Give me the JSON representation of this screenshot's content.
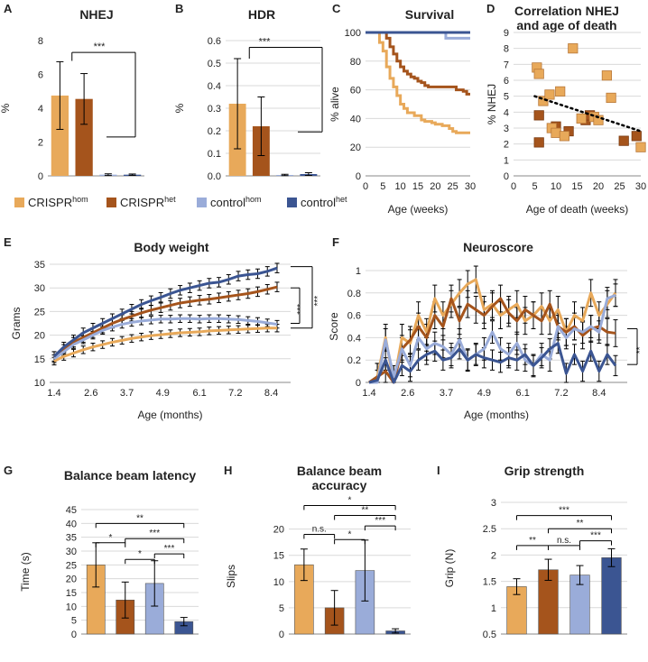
{
  "colors": {
    "crispr_hom": "#E8A95A",
    "crispr_het": "#A5541C",
    "control_hom": "#9AACD9",
    "control_het": "#3B5592",
    "grid": "#d9d9d9",
    "axis": "#888888",
    "text": "#222222",
    "trend": "#000000"
  },
  "legend": [
    {
      "base": "CRISPR",
      "sup": "hom",
      "color_key": "crispr_hom"
    },
    {
      "base": "CRISPR",
      "sup": "het",
      "color_key": "crispr_het"
    },
    {
      "base": "control",
      "sup": "hom",
      "color_key": "control_hom"
    },
    {
      "base": "control",
      "sup": "het",
      "color_key": "control_het"
    }
  ],
  "chart_data": [
    {
      "id": "A",
      "type": "bar",
      "title": "NHEJ",
      "panel_label": "A",
      "ylabel": "%",
      "xlabel": "",
      "ylim": [
        0,
        8
      ],
      "yticks": [
        "0",
        "2",
        "4",
        "6",
        "8"
      ],
      "series": [
        {
          "name": "CRISPRhom",
          "value": 4.75,
          "err": 2.0
        },
        {
          "name": "CRISPRhet",
          "value": 4.55,
          "err": 1.5
        },
        {
          "name": "controlhom",
          "value": 0.07,
          "err": 0.05
        },
        {
          "name": "controlhet",
          "value": 0.07,
          "err": 0.04
        }
      ],
      "significance": [
        {
          "label": "***",
          "from": [
            0,
            1
          ],
          "to": [
            2,
            3
          ]
        }
      ]
    },
    {
      "id": "B",
      "type": "bar",
      "title": "HDR",
      "panel_label": "B",
      "ylabel": "%",
      "xlabel": "",
      "ylim": [
        0,
        0.6
      ],
      "yticks": [
        "0.0",
        "0.1",
        "0.2",
        "0.3",
        "0.4",
        "0.5",
        "0.6"
      ],
      "series": [
        {
          "name": "CRISPRhom",
          "value": 0.32,
          "err": 0.2
        },
        {
          "name": "CRISPRhet",
          "value": 0.22,
          "err": 0.13
        },
        {
          "name": "controlhom",
          "value": 0.004,
          "err": 0.003
        },
        {
          "name": "controlhet",
          "value": 0.008,
          "err": 0.006
        }
      ],
      "significance": [
        {
          "label": "***",
          "from": [
            0,
            1
          ],
          "to": [
            2,
            3
          ]
        }
      ]
    },
    {
      "id": "C",
      "type": "line",
      "title": "Survival",
      "panel_label": "C",
      "ylabel": "% alive",
      "xlabel": "Age (weeks)",
      "xlim": [
        0,
        30
      ],
      "ylim": [
        0,
        100
      ],
      "xticks": [
        "0",
        "5",
        "10",
        "15",
        "20",
        "25",
        "30"
      ],
      "yticks": [
        "0",
        "20",
        "40",
        "60",
        "80",
        "100"
      ],
      "series": [
        {
          "name": "CRISPRhom",
          "steps": [
            [
              0,
              100
            ],
            [
              4,
              100
            ],
            [
              4,
              93
            ],
            [
              5,
              87
            ],
            [
              6,
              76
            ],
            [
              7,
              68
            ],
            [
              8,
              62
            ],
            [
              9,
              56
            ],
            [
              10,
              50
            ],
            [
              11,
              47
            ],
            [
              12,
              44
            ],
            [
              14,
              42
            ],
            [
              16,
              39
            ],
            [
              17,
              38
            ],
            [
              19,
              37
            ],
            [
              20,
              36
            ],
            [
              22,
              35
            ],
            [
              23,
              35
            ],
            [
              24,
              33
            ],
            [
              25,
              31
            ],
            [
              26,
              30
            ],
            [
              30,
              30
            ]
          ]
        },
        {
          "name": "CRISPRhet",
          "steps": [
            [
              0,
              100
            ],
            [
              5,
              100
            ],
            [
              6,
              96
            ],
            [
              7,
              90
            ],
            [
              8,
              85
            ],
            [
              9,
              80
            ],
            [
              10,
              76
            ],
            [
              11,
              73
            ],
            [
              12,
              71
            ],
            [
              13,
              69
            ],
            [
              14,
              68
            ],
            [
              15,
              66
            ],
            [
              16,
              65
            ],
            [
              17,
              63
            ],
            [
              18,
              62
            ],
            [
              25,
              62
            ],
            [
              26,
              60
            ],
            [
              28,
              59
            ],
            [
              29,
              57
            ],
            [
              30,
              57
            ]
          ]
        },
        {
          "name": "controlhom",
          "steps": [
            [
              0,
              100
            ],
            [
              23,
              100
            ],
            [
              23,
              96
            ],
            [
              30,
              96
            ]
          ]
        },
        {
          "name": "controlhet",
          "steps": [
            [
              0,
              100
            ],
            [
              30,
              100
            ]
          ]
        }
      ]
    },
    {
      "id": "D",
      "type": "scatter",
      "title": "Correlation  NHEJ and age of death",
      "panel_label": "D",
      "title_lines": [
        "Correlation  NHEJ",
        "and age of death"
      ],
      "ylabel": "% NHEJ",
      "xlabel": "Age of death (weeks)",
      "xlim": [
        0,
        30
      ],
      "ylim": [
        0,
        9
      ],
      "xticks": [
        "0",
        "5",
        "10",
        "15",
        "20",
        "25",
        "30"
      ],
      "yticks": [
        "0",
        "1",
        "2",
        "3",
        "4",
        "5",
        "6",
        "7",
        "8",
        "9"
      ],
      "points_hom": [
        [
          5.5,
          6.8
        ],
        [
          6,
          6.4
        ],
        [
          7,
          4.7
        ],
        [
          8.5,
          5.1
        ],
        [
          9,
          3
        ],
        [
          11,
          5.3
        ],
        [
          10,
          2.7
        ],
        [
          12,
          2.5
        ],
        [
          14,
          8
        ],
        [
          16,
          3.6
        ],
        [
          19,
          3.7
        ],
        [
          20,
          3.5
        ],
        [
          22,
          6.3
        ],
        [
          23,
          4.9
        ],
        [
          30,
          1.8
        ]
      ],
      "points_het": [
        [
          6,
          3.8
        ],
        [
          6,
          2.1
        ],
        [
          10,
          3.1
        ],
        [
          13,
          2.8
        ],
        [
          17,
          3.5
        ],
        [
          18,
          3.8
        ],
        [
          26,
          2.2
        ],
        [
          29,
          2.5
        ]
      ],
      "trend": [
        [
          5,
          5.0
        ],
        [
          30,
          2.8
        ]
      ]
    },
    {
      "id": "E",
      "type": "line",
      "title": "Body weight",
      "panel_label": "E",
      "ylabel": "Grams",
      "xlabel": "Age (months)",
      "xlim": [
        1.4,
        8.9
      ],
      "ylim": [
        10,
        35
      ],
      "xticks": [
        "1.4",
        "2.6",
        "3.7",
        "4.9",
        "6.1",
        "7.2",
        "8.4"
      ],
      "yticks": [
        "10",
        "15",
        "20",
        "25",
        "30",
        "35"
      ],
      "series": [
        {
          "name": "CRISPRhom",
          "values": [
            14.5,
            15.5,
            16.2,
            16.9,
            17.5,
            18,
            18.5,
            18.9,
            19.3,
            19.6,
            19.9,
            20.1,
            20.3,
            20.5,
            20.6,
            20.7,
            20.9,
            21,
            21.1,
            21.2,
            21.3,
            21.4,
            21.5,
            21.5
          ],
          "err": 0.8
        },
        {
          "name": "CRISPRhet",
          "values": [
            15.5,
            17,
            18.5,
            19.5,
            20.5,
            21.5,
            22.5,
            23.3,
            24,
            24.7,
            25.3,
            25.8,
            26.3,
            26.8,
            27.1,
            27.4,
            27.6,
            27.9,
            28.2,
            28.5,
            28.8,
            29.2,
            29.7,
            30.2
          ],
          "err": 1.0
        },
        {
          "name": "controlhom",
          "values": [
            15,
            16.5,
            18,
            19,
            20,
            21,
            21.7,
            22.3,
            22.7,
            23,
            23.2,
            23.4,
            23.4,
            23.5,
            23.5,
            23.4,
            23.5,
            23.5,
            23.4,
            23.3,
            23.1,
            22.9,
            22.6,
            22.3
          ],
          "err": 0.8
        },
        {
          "name": "controlhet",
          "values": [
            15.5,
            17.5,
            19,
            20.5,
            21.5,
            22.5,
            23.5,
            24.5,
            25.5,
            26.5,
            27.3,
            28,
            28.8,
            29.5,
            30,
            30.5,
            31,
            31.2,
            31.8,
            32.5,
            32.8,
            33,
            33.5,
            34.2
          ],
          "err": 1.0
        }
      ],
      "significance": [
        "***",
        "***"
      ]
    },
    {
      "id": "F",
      "type": "line",
      "title": "Neuroscore",
      "panel_label": "F",
      "ylabel": "Score",
      "xlabel": "Age (months)",
      "xlim": [
        1.1,
        8.9
      ],
      "ylim": [
        0,
        1
      ],
      "xticks": [
        "1.4",
        "2.6",
        "3.7",
        "4.9",
        "6.1",
        "7.2",
        "8.4"
      ],
      "yticks": [
        "0",
        "0.2",
        "0.4",
        "0.6",
        "0.8",
        "1"
      ],
      "series": [
        {
          "name": "CRISPRhom",
          "values": [
            0,
            0.05,
            0.4,
            0,
            0.4,
            0.35,
            0.6,
            0.45,
            0.75,
            0.6,
            0.7,
            0.8,
            0.88,
            0.92,
            0.65,
            0.7,
            0.6,
            0.65,
            0.7,
            0.55,
            0.6,
            0.68,
            0.55,
            0.65,
            0.45,
            0.6,
            0.55,
            0.8,
            0.6,
            0.7,
            0.8
          ],
          "err": 0.12
        },
        {
          "name": "CRISPRhet",
          "values": [
            0,
            0.05,
            0.1,
            0,
            0.3,
            0.38,
            0.5,
            0.4,
            0.6,
            0.5,
            0.75,
            0.55,
            0.7,
            0.65,
            0.6,
            0.68,
            0.75,
            0.62,
            0.55,
            0.65,
            0.6,
            0.55,
            0.7,
            0.5,
            0.45,
            0.5,
            0.42,
            0.48,
            0.5,
            0.45,
            0.44
          ],
          "err": 0.12
        },
        {
          "name": "controlhom",
          "values": [
            0,
            0,
            0.38,
            0.05,
            0.3,
            0.15,
            0.4,
            0.3,
            0.35,
            0.32,
            0.25,
            0.38,
            0.2,
            0.25,
            0.3,
            0.45,
            0.3,
            0.25,
            0.35,
            0.2,
            0.15,
            0.25,
            0.2,
            0.5,
            0.4,
            0.48,
            0.45,
            0.5,
            0.45,
            0.75,
            0.78
          ],
          "err": 0.1
        },
        {
          "name": "controlhet",
          "values": [
            0,
            0.02,
            0.2,
            0,
            0.15,
            0.1,
            0.2,
            0.25,
            0.28,
            0.2,
            0.22,
            0.3,
            0.2,
            0.25,
            0.22,
            0.2,
            0.18,
            0.22,
            0.2,
            0.25,
            0.15,
            0.22,
            0.3,
            0.35,
            0.08,
            0.25,
            0.1,
            0.28,
            0.1,
            0.25,
            0.15
          ],
          "err": 0.09
        }
      ],
      "significance": [
        "**"
      ]
    },
    {
      "id": "G",
      "type": "bar",
      "title": "Balance beam latency",
      "panel_label": "G",
      "ylabel": "Time (s)",
      "xlabel": "",
      "ylim": [
        0,
        45
      ],
      "yticks": [
        "0",
        "5",
        "10",
        "15",
        "20",
        "25",
        "30",
        "35",
        "40",
        "45"
      ],
      "series": [
        {
          "name": "CRISPRhom",
          "value": 25,
          "err": 8
        },
        {
          "name": "CRISPRhet",
          "value": 12.3,
          "err": 6.5
        },
        {
          "name": "controlhom",
          "value": 18.3,
          "err": 8.2
        },
        {
          "name": "controlhet",
          "value": 4.5,
          "err": 1.5
        }
      ],
      "significance": [
        {
          "label": "**",
          "a": 0,
          "b": 3,
          "y": 40
        },
        {
          "label": "***",
          "a": 1,
          "b": 3,
          "y": 34.5
        },
        {
          "label": "***",
          "a": 2,
          "b": 3,
          "y": 29
        },
        {
          "label": "*",
          "a": 0,
          "b": 1,
          "y": 33
        },
        {
          "label": "*",
          "a": 1,
          "b": 2,
          "y": 27
        }
      ]
    },
    {
      "id": "H",
      "type": "bar",
      "title": "Balance beam accuracy",
      "panel_label": "H",
      "title_lines": [
        "Balance beam",
        "accuracy"
      ],
      "ylabel": "Slips",
      "xlabel": "",
      "ylim": [
        0,
        22
      ],
      "yticks": [
        "0",
        "5",
        "10",
        "15",
        "20"
      ],
      "series": [
        {
          "name": "CRISPRhom",
          "value": 13.2,
          "err": 3
        },
        {
          "name": "CRISPRhet",
          "value": 5,
          "err": 3.3
        },
        {
          "name": "controlhom",
          "value": 12.1,
          "err": 5.8
        },
        {
          "name": "controlhet",
          "value": 0.6,
          "err": 0.4
        }
      ],
      "significance": [
        {
          "label": "*",
          "a": 0,
          "b": 3,
          "y": 24.5
        },
        {
          "label": "**",
          "a": 1,
          "b": 3,
          "y": 22.6
        },
        {
          "label": "***",
          "a": 2,
          "b": 3,
          "y": 20.6
        },
        {
          "label": "n.s.",
          "a": 0,
          "b": 1,
          "y": 19
        },
        {
          "label": "*",
          "a": 1,
          "b": 2,
          "y": 18
        }
      ]
    },
    {
      "id": "I",
      "type": "bar",
      "title": "Grip strength",
      "panel_label": "I",
      "ylabel": "Grip (N)",
      "xlabel": "",
      "ylim": [
        0.5,
        3
      ],
      "yticks": [
        "0.5",
        "1",
        "1.5",
        "2",
        "2.5",
        "3"
      ],
      "series": [
        {
          "name": "CRISPRhom",
          "value": 1.4,
          "err": 0.15
        },
        {
          "name": "CRISPRhet",
          "value": 1.72,
          "err": 0.2
        },
        {
          "name": "controlhom",
          "value": 1.62,
          "err": 0.18
        },
        {
          "name": "controlhet",
          "value": 1.95,
          "err": 0.17
        }
      ],
      "significance": [
        {
          "label": "***",
          "a": 0,
          "b": 3,
          "y": 2.75
        },
        {
          "label": "**",
          "a": 1,
          "b": 3,
          "y": 2.5
        },
        {
          "label": "***",
          "a": 2,
          "b": 3,
          "y": 2.27
        },
        {
          "label": "**",
          "a": 0,
          "b": 1,
          "y": 2.18
        },
        {
          "label": "n.s.",
          "a": 1,
          "b": 2,
          "y": 2.18
        }
      ]
    }
  ]
}
